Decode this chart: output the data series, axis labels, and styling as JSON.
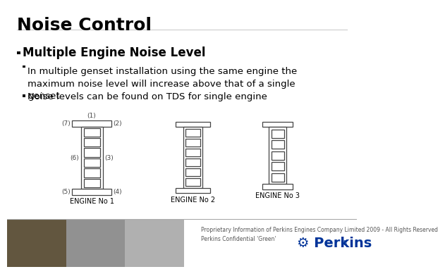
{
  "background_color": "#ffffff",
  "title": "Noise Control",
  "title_fontsize": 18,
  "title_fontweight": "bold",
  "bullet1_text": "Multiple Engine Noise Level",
  "bullet1_fontsize": 12,
  "bullet1_fontweight": "bold",
  "sub_bullet1": "In multiple genset installation using the same engine the\nmaximum noise level will increase above that of a single\ngenset",
  "sub_bullet2": "Noise levels can be found on TDS for single engine",
  "sub_bullet_fontsize": 9.5,
  "engine_labels": [
    "ENGINE No 1",
    "ENGINE No 2",
    "ENGINE No 3"
  ],
  "footer_text": "Proprietary Information of Perkins Engines Company Limited 2009 - All Rights Reserved\nPerkins Confidential 'Green'",
  "footer_color": "#555555",
  "footer_fontsize": 5.5,
  "perkins_color": "#003399",
  "outline_color": "#444444",
  "label_color": "#444444",
  "num_label_fontsize": 6.5
}
